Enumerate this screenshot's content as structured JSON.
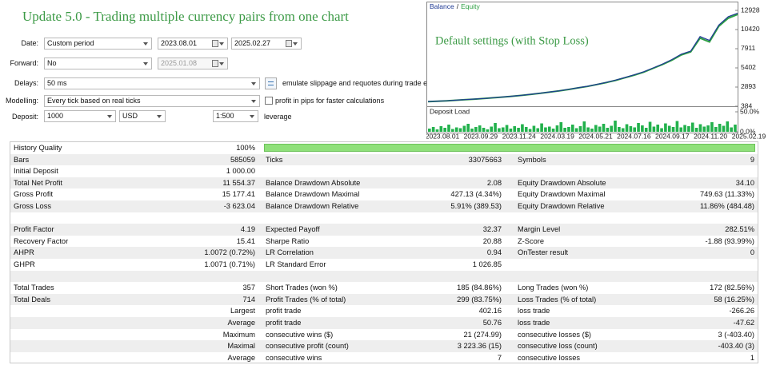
{
  "title": "Update 5.0 - Trading multiple currency pairs from one chart",
  "settings": {
    "date": {
      "label": "Date:",
      "period": "Custom period",
      "from": "2023.08.01",
      "to": "2025.02.27"
    },
    "forward": {
      "label": "Forward:",
      "mode": "No",
      "date": "2025.01.08"
    },
    "delays": {
      "label": "Delays:",
      "value": "50 ms",
      "option": "emulate slippage and requotes during trade execu"
    },
    "modelling": {
      "label": "Modelling:",
      "value": "Every tick based on real ticks",
      "option": "profit in pips for faster calculations"
    },
    "deposit": {
      "label": "Deposit:",
      "amount": "1000",
      "currency": "USD",
      "leverage": "1:500",
      "leverage_label": "leverage"
    }
  },
  "chart_data": {
    "type": "line",
    "annotation": "Default settings (with Stop Loss)",
    "legend_separator": "/",
    "series": [
      {
        "name": "Balance",
        "color": "#1f3a93",
        "values": [
          1000,
          1050,
          1100,
          1180,
          1250,
          1320,
          1400,
          1500,
          1600,
          1700,
          1820,
          1950,
          2100,
          2250,
          2400,
          2600,
          2800,
          3000,
          3250,
          3500,
          3800,
          4150,
          4500,
          4900,
          5400,
          5900,
          6500,
          7200,
          7600,
          9500,
          9000,
          11000,
          12100,
          12554
        ]
      },
      {
        "name": "Equity",
        "color": "#2ea043",
        "values": [
          990,
          1040,
          1095,
          1170,
          1245,
          1310,
          1395,
          1490,
          1590,
          1690,
          1810,
          1940,
          2080,
          2240,
          2390,
          2580,
          2790,
          2980,
          3230,
          3480,
          3770,
          4120,
          4460,
          4850,
          5350,
          5850,
          6420,
          7100,
          7500,
          9300,
          8800,
          10850,
          11900,
          12400
        ]
      }
    ],
    "ylim": [
      384,
      12928
    ],
    "yticks": [
      12928,
      10420,
      7911,
      5402,
      2893,
      384
    ],
    "x_labels": [
      "2023.08.01",
      "2023.09.29",
      "2023.11.24",
      "2024.03.19",
      "2024.05.21",
      "2024.07.16",
      "2024.09.17",
      "2024.11.20",
      "2025.02.19"
    ],
    "deposit_load": {
      "title": "Deposit Load",
      "color": "#22b14c",
      "ylim": [
        0,
        50
      ],
      "yticks": [
        {
          "value": 50,
          "label": "50.0%"
        },
        {
          "value": 0,
          "label": "0.0%"
        }
      ],
      "values": [
        8,
        12,
        6,
        14,
        10,
        18,
        7,
        11,
        9,
        15,
        20,
        8,
        12,
        16,
        10,
        6,
        13,
        22,
        9,
        11,
        17,
        8,
        14,
        10,
        19,
        12,
        7,
        15,
        9,
        21,
        11,
        13,
        8,
        16,
        24,
        10,
        12,
        18,
        9,
        14,
        26,
        11,
        8,
        17,
        13,
        20,
        10,
        15,
        28,
        12,
        9,
        19,
        14,
        11,
        22,
        16,
        10,
        25,
        13,
        18,
        9,
        21,
        15,
        12,
        27,
        11,
        17,
        14,
        23,
        10,
        19,
        13,
        16,
        24,
        12,
        20,
        15,
        26,
        11,
        18
      ]
    }
  },
  "table": {
    "rows": [
      [
        [
          "History Quality",
          "100%"
        ]
      ],
      [
        [
          "Bars",
          "585059"
        ],
        [
          "Ticks",
          "33075663"
        ],
        [
          "Symbols",
          "9"
        ]
      ],
      [
        [
          "Initial Deposit",
          "1 000.00"
        ]
      ],
      [
        [
          "Total Net Profit",
          "11 554.37"
        ],
        [
          "Balance Drawdown Absolute",
          "2.08"
        ],
        [
          "Equity Drawdown Absolute",
          "34.10"
        ]
      ],
      [
        [
          "Gross Profit",
          "15 177.41"
        ],
        [
          "Balance Drawdown Maximal",
          "427.13 (4.34%)"
        ],
        [
          "Equity Drawdown Maximal",
          "749.63 (11.33%)"
        ]
      ],
      [
        [
          "Gross Loss",
          "-3 623.04"
        ],
        [
          "Balance Drawdown Relative",
          "5.91% (389.53)"
        ],
        [
          "Equity Drawdown Relative",
          "11.86% (484.48)"
        ]
      ],
      [],
      [
        [
          "Profit Factor",
          "4.19"
        ],
        [
          "Expected Payoff",
          "32.37"
        ],
        [
          "Margin Level",
          "282.51%"
        ]
      ],
      [
        [
          "Recovery Factor",
          "15.41"
        ],
        [
          "Sharpe Ratio",
          "20.88"
        ],
        [
          "Z-Score",
          "-1.88 (93.99%)"
        ]
      ],
      [
        [
          "AHPR",
          "1.0072 (0.72%)"
        ],
        [
          "LR Correlation",
          "0.94"
        ],
        [
          "OnTester result",
          "0"
        ]
      ],
      [
        [
          "GHPR",
          "1.0071 (0.71%)"
        ],
        [
          "LR Standard Error",
          "1 026.85"
        ]
      ],
      [],
      [
        [
          "Total Trades",
          "357"
        ],
        [
          "Short Trades (won %)",
          "185 (84.86%)"
        ],
        [
          "Long Trades (won %)",
          "172 (82.56%)"
        ]
      ],
      [
        [
          "Total Deals",
          "714"
        ],
        [
          "Profit Trades (% of total)",
          "299 (83.75%)"
        ],
        [
          "Loss Trades (% of total)",
          "58 (16.25%)"
        ]
      ],
      [
        [
          "Largest"
        ],
        [
          "profit trade",
          "402.16"
        ],
        [
          "loss trade",
          "-266.26"
        ]
      ],
      [
        [
          "Average"
        ],
        [
          "profit trade",
          "50.76"
        ],
        [
          "loss trade",
          "-47.62"
        ]
      ],
      [
        [
          "Maximum"
        ],
        [
          "consecutive wins ($)",
          "21 (274.99)"
        ],
        [
          "consecutive losses ($)",
          "3 (-403.40)"
        ]
      ],
      [
        [
          "Maximal"
        ],
        [
          "consecutive profit (count)",
          "3 223.36 (15)"
        ],
        [
          "consecutive loss (count)",
          "-403.40 (3)"
        ]
      ],
      [
        [
          "Average"
        ],
        [
          "consecutive wins",
          "7"
        ],
        [
          "consecutive losses",
          "1"
        ]
      ]
    ]
  }
}
